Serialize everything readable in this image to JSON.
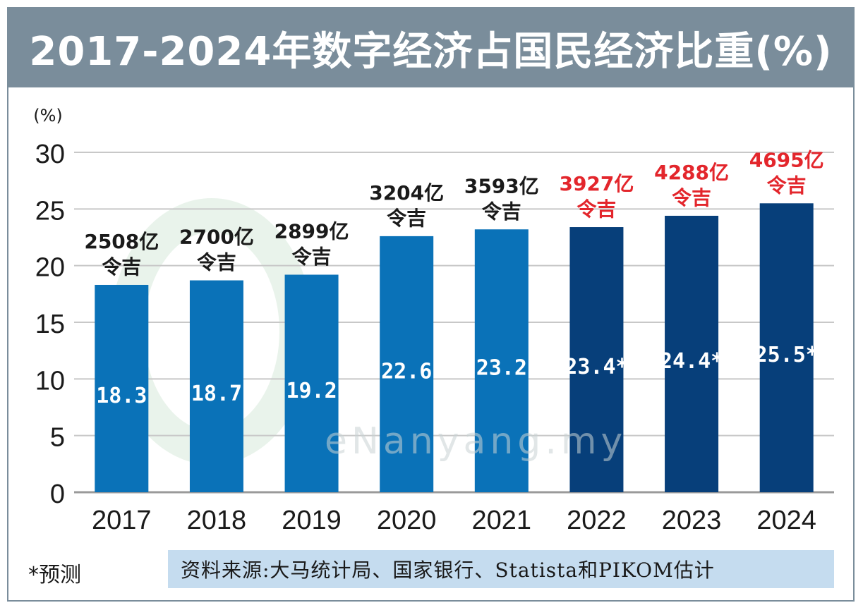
{
  "title": "2017-2024年数字经济占国民经济比重(%)",
  "chart_data": {
    "type": "bar",
    "title": "2017-2024年数字经济占国民经济比重(%)",
    "ylabel": "(%)",
    "xlabel": "",
    "ylim": [
      0,
      30
    ],
    "yticks": [
      0,
      5,
      10,
      15,
      20,
      25,
      30
    ],
    "grid": true,
    "categories": [
      "2017",
      "2018",
      "2019",
      "2020",
      "2021",
      "2022",
      "2023",
      "2024"
    ],
    "values": [
      18.3,
      18.7,
      19.2,
      22.6,
      23.2,
      23.4,
      24.4,
      25.5
    ],
    "value_labels": [
      "18.3",
      "18.7",
      "19.2",
      "22.6",
      "23.2",
      "23.4*",
      "24.4*",
      "25.5*"
    ],
    "top_labels": [
      [
        "2508亿",
        "令吉"
      ],
      [
        "2700亿",
        "令吉"
      ],
      [
        "2899亿",
        "令吉"
      ],
      [
        "3204亿",
        "令吉"
      ],
      [
        "3593亿",
        "令吉"
      ],
      [
        "3927亿",
        "令吉"
      ],
      [
        "4288亿",
        "令吉"
      ],
      [
        "4695亿",
        "令吉"
      ]
    ],
    "forecast": [
      false,
      false,
      false,
      false,
      false,
      true,
      true,
      true
    ],
    "colors": {
      "actual_bar": "#0a72b8",
      "forecast_bar": "#073f7a",
      "actual_label": "#1a1a1a",
      "forecast_label": "#e3262c",
      "grid": "#c8c8c8"
    }
  },
  "watermark": "eNanyang.my",
  "footnote": "*预测",
  "source": "资料来源:大马统计局、国家银行、Statista和PIKOM估计"
}
